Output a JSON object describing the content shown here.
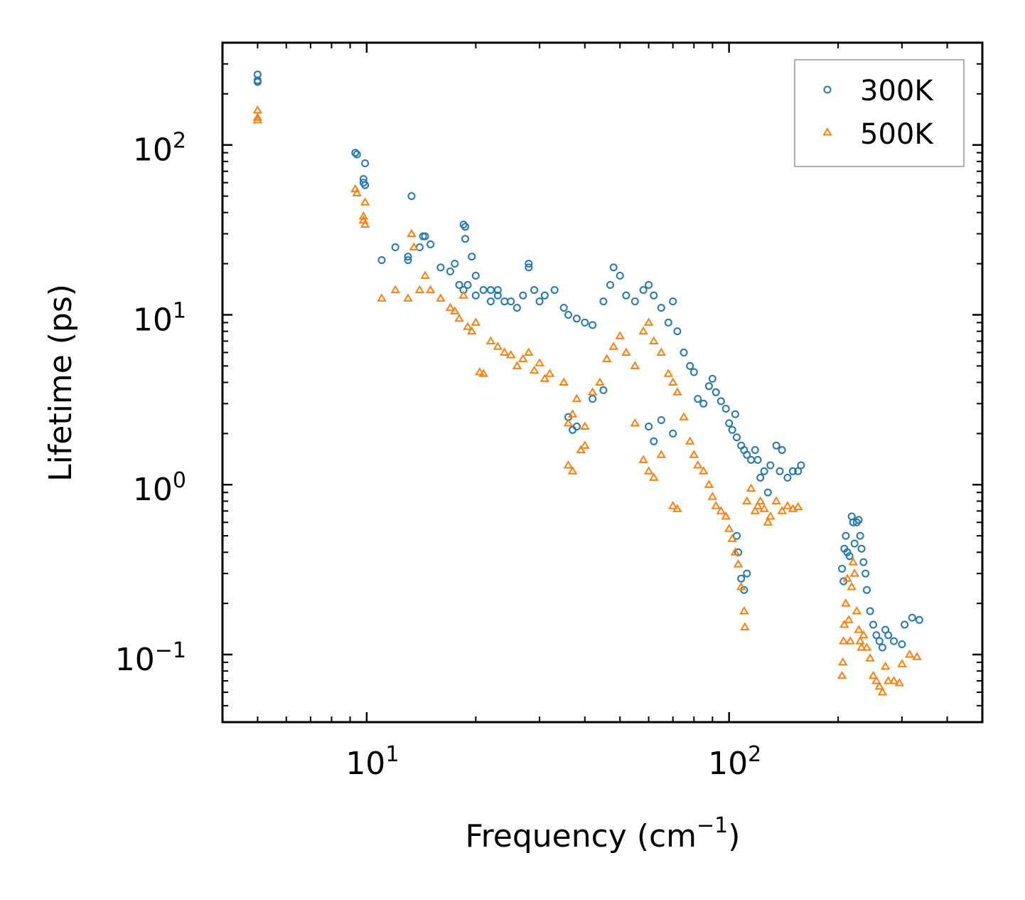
{
  "chart_data": {
    "type": "scatter",
    "title": "",
    "xlabel": "Frequency (cm",
    "xlabel_sup": "−1",
    "xlabel_end": ")",
    "ylabel": "Lifetime (ps)",
    "xscale": "log",
    "yscale": "log",
    "xlim": [
      4,
      500
    ],
    "ylim": [
      0.04,
      400
    ],
    "legend": {
      "position": "top-right",
      "entries": [
        "300K",
        "500K"
      ]
    },
    "x_tick_labels": [
      {
        "value": 10,
        "base": "10",
        "exp": "1"
      },
      {
        "value": 100,
        "base": "10",
        "exp": "2"
      }
    ],
    "y_tick_labels": [
      {
        "value": 0.1,
        "base": "10",
        "exp": "−1"
      },
      {
        "value": 1,
        "base": "10",
        "exp": "0"
      },
      {
        "value": 10,
        "base": "10",
        "exp": "1"
      },
      {
        "value": 100,
        "base": "10",
        "exp": "2"
      }
    ],
    "series": [
      {
        "name": "300K",
        "marker": "circle",
        "color": "#1f77b4",
        "points": [
          [
            5,
            260
          ],
          [
            5,
            240
          ],
          [
            5,
            235
          ],
          [
            9.3,
            90
          ],
          [
            9.4,
            88
          ],
          [
            9.9,
            78
          ],
          [
            9.8,
            63
          ],
          [
            9.8,
            60
          ],
          [
            9.9,
            58
          ],
          [
            11,
            21
          ],
          [
            12,
            25
          ],
          [
            13,
            22
          ],
          [
            13,
            21
          ],
          [
            13.3,
            50
          ],
          [
            14,
            25
          ],
          [
            14.3,
            29
          ],
          [
            14.5,
            29
          ],
          [
            15,
            26
          ],
          [
            16,
            19
          ],
          [
            17,
            18
          ],
          [
            17.5,
            20
          ],
          [
            18,
            15
          ],
          [
            18.5,
            14
          ],
          [
            18.5,
            34
          ],
          [
            18.7,
            33
          ],
          [
            18.7,
            28
          ],
          [
            19,
            15
          ],
          [
            19.5,
            22
          ],
          [
            20,
            17
          ],
          [
            20,
            13
          ],
          [
            21,
            14
          ],
          [
            22,
            12
          ],
          [
            22,
            14
          ],
          [
            23,
            13
          ],
          [
            23,
            14
          ],
          [
            24,
            12
          ],
          [
            25,
            12
          ],
          [
            26,
            11
          ],
          [
            27,
            13
          ],
          [
            28,
            20
          ],
          [
            28,
            19
          ],
          [
            29,
            14
          ],
          [
            30,
            12
          ],
          [
            31,
            13
          ],
          [
            33,
            14
          ],
          [
            35,
            11
          ],
          [
            36,
            10
          ],
          [
            38,
            9.5
          ],
          [
            40,
            9
          ],
          [
            42,
            8.7
          ],
          [
            45,
            12
          ],
          [
            47,
            15
          ],
          [
            48,
            19
          ],
          [
            50,
            17
          ],
          [
            52,
            13
          ],
          [
            55,
            12
          ],
          [
            58,
            14
          ],
          [
            60,
            15
          ],
          [
            62,
            13
          ],
          [
            65,
            11
          ],
          [
            68,
            9
          ],
          [
            70,
            12
          ],
          [
            72,
            8
          ],
          [
            75,
            6
          ],
          [
            78,
            5
          ],
          [
            80,
            4.6
          ],
          [
            82,
            3.2
          ],
          [
            85,
            3
          ],
          [
            88,
            3.8
          ],
          [
            90,
            4.2
          ],
          [
            92,
            3.5
          ],
          [
            95,
            3.1
          ],
          [
            98,
            2.8
          ],
          [
            100,
            2.3
          ],
          [
            102,
            2.1
          ],
          [
            104,
            2.6
          ],
          [
            105,
            1.9
          ],
          [
            108,
            1.7
          ],
          [
            110,
            1.6
          ],
          [
            112,
            1.5
          ],
          [
            115,
            1.4
          ],
          [
            118,
            1.6
          ],
          [
            120,
            1.4
          ],
          [
            122,
            1.1
          ],
          [
            125,
            1.2
          ],
          [
            128,
            0.9
          ],
          [
            130,
            1.3
          ],
          [
            135,
            1.7
          ],
          [
            138,
            1.2
          ],
          [
            140,
            1.6
          ],
          [
            145,
            1.1
          ],
          [
            150,
            1.2
          ],
          [
            155,
            1.2
          ],
          [
            158,
            1.3
          ],
          [
            36,
            2.5
          ],
          [
            37,
            2.1
          ],
          [
            38,
            2.2
          ],
          [
            42,
            3.2
          ],
          [
            45,
            3.6
          ],
          [
            60,
            2.2
          ],
          [
            62,
            1.8
          ],
          [
            65,
            2.4
          ],
          [
            70,
            2
          ],
          [
            105,
            0.5
          ],
          [
            106,
            0.4
          ],
          [
            108,
            0.28
          ],
          [
            110,
            0.24
          ],
          [
            112,
            0.3
          ],
          [
            205,
            0.32
          ],
          [
            207,
            0.27
          ],
          [
            208,
            0.42
          ],
          [
            210,
            0.5
          ],
          [
            212,
            0.4
          ],
          [
            215,
            0.38
          ],
          [
            218,
            0.65
          ],
          [
            220,
            0.6
          ],
          [
            222,
            0.45
          ],
          [
            225,
            0.6
          ],
          [
            228,
            0.62
          ],
          [
            230,
            0.5
          ],
          [
            232,
            0.42
          ],
          [
            235,
            0.35
          ],
          [
            238,
            0.3
          ],
          [
            240,
            0.24
          ],
          [
            245,
            0.18
          ],
          [
            250,
            0.15
          ],
          [
            255,
            0.13
          ],
          [
            260,
            0.12
          ],
          [
            265,
            0.11
          ],
          [
            270,
            0.14
          ],
          [
            275,
            0.13
          ],
          [
            285,
            0.12
          ],
          [
            300,
            0.115
          ],
          [
            305,
            0.15
          ],
          [
            320,
            0.165
          ],
          [
            335,
            0.16
          ]
        ]
      },
      {
        "name": "500K",
        "marker": "triangle",
        "color": "#ff7f0e",
        "points": [
          [
            5,
            160
          ],
          [
            5,
            145
          ],
          [
            5,
            140
          ],
          [
            9.3,
            55
          ],
          [
            9.4,
            52
          ],
          [
            9.9,
            46
          ],
          [
            9.8,
            38
          ],
          [
            9.8,
            36
          ],
          [
            9.9,
            34
          ],
          [
            11,
            12.5
          ],
          [
            12,
            14
          ],
          [
            13,
            12.5
          ],
          [
            13.3,
            30
          ],
          [
            13.5,
            25
          ],
          [
            14,
            14
          ],
          [
            14.5,
            17
          ],
          [
            15,
            14
          ],
          [
            16,
            12.5
          ],
          [
            17,
            11
          ],
          [
            17.5,
            10.5
          ],
          [
            18,
            9.5
          ],
          [
            18.5,
            13
          ],
          [
            19,
            8.5
          ],
          [
            19.5,
            8
          ],
          [
            20,
            9
          ],
          [
            20.5,
            4.6
          ],
          [
            21,
            4.5
          ],
          [
            22,
            7
          ],
          [
            23,
            6.5
          ],
          [
            24,
            6
          ],
          [
            25,
            5.8
          ],
          [
            26,
            5
          ],
          [
            27,
            5.5
          ],
          [
            28,
            6
          ],
          [
            29,
            4.7
          ],
          [
            30,
            5.2
          ],
          [
            31,
            4.2
          ],
          [
            32,
            4.5
          ],
          [
            35,
            4
          ],
          [
            36,
            2.3
          ],
          [
            37,
            2.6
          ],
          [
            38,
            3.2
          ],
          [
            39,
            1.6
          ],
          [
            40,
            1.7
          ],
          [
            42,
            3.5
          ],
          [
            44,
            4
          ],
          [
            46,
            5.5
          ],
          [
            48,
            6.5
          ],
          [
            50,
            7.5
          ],
          [
            52,
            6
          ],
          [
            55,
            5
          ],
          [
            58,
            8
          ],
          [
            60,
            9
          ],
          [
            62,
            7
          ],
          [
            65,
            6
          ],
          [
            68,
            4.5
          ],
          [
            70,
            4
          ],
          [
            72,
            3.5
          ],
          [
            75,
            2.5
          ],
          [
            78,
            1.8
          ],
          [
            80,
            1.5
          ],
          [
            82,
            1.3
          ],
          [
            85,
            1.2
          ],
          [
            88,
            1.0
          ],
          [
            90,
            0.85
          ],
          [
            92,
            0.75
          ],
          [
            95,
            0.7
          ],
          [
            98,
            0.65
          ],
          [
            100,
            0.55
          ],
          [
            102,
            0.48
          ],
          [
            104,
            0.4
          ],
          [
            106,
            0.34
          ],
          [
            108,
            0.25
          ],
          [
            110,
            0.18
          ],
          [
            110.5,
            0.145
          ],
          [
            112,
            0.8
          ],
          [
            115,
            0.95
          ],
          [
            118,
            0.7
          ],
          [
            120,
            0.75
          ],
          [
            122,
            0.8
          ],
          [
            125,
            0.72
          ],
          [
            128,
            0.6
          ],
          [
            130,
            0.65
          ],
          [
            135,
            0.8
          ],
          [
            140,
            0.7
          ],
          [
            145,
            0.75
          ],
          [
            150,
            0.72
          ],
          [
            155,
            0.74
          ],
          [
            36,
            1.3
          ],
          [
            37,
            1.2
          ],
          [
            40,
            2.2
          ],
          [
            55,
            2.3
          ],
          [
            58,
            1.4
          ],
          [
            60,
            1.2
          ],
          [
            62,
            1.1
          ],
          [
            65,
            1.5
          ],
          [
            70,
            0.75
          ],
          [
            72,
            0.72
          ],
          [
            205,
            0.075
          ],
          [
            206,
            0.09
          ],
          [
            207,
            0.12
          ],
          [
            208,
            0.15
          ],
          [
            210,
            0.2
          ],
          [
            212,
            0.28
          ],
          [
            214,
            0.16
          ],
          [
            216,
            0.12
          ],
          [
            218,
            0.25
          ],
          [
            220,
            0.35
          ],
          [
            222,
            0.3
          ],
          [
            225,
            0.18
          ],
          [
            228,
            0.14
          ],
          [
            230,
            0.12
          ],
          [
            232,
            0.11
          ],
          [
            235,
            0.13
          ],
          [
            240,
            0.11
          ],
          [
            245,
            0.095
          ],
          [
            250,
            0.075
          ],
          [
            255,
            0.07
          ],
          [
            260,
            0.065
          ],
          [
            265,
            0.06
          ],
          [
            270,
            0.085
          ],
          [
            275,
            0.07
          ],
          [
            285,
            0.07
          ],
          [
            295,
            0.068
          ],
          [
            300,
            0.088
          ],
          [
            315,
            0.1
          ],
          [
            330,
            0.097
          ]
        ]
      }
    ]
  }
}
